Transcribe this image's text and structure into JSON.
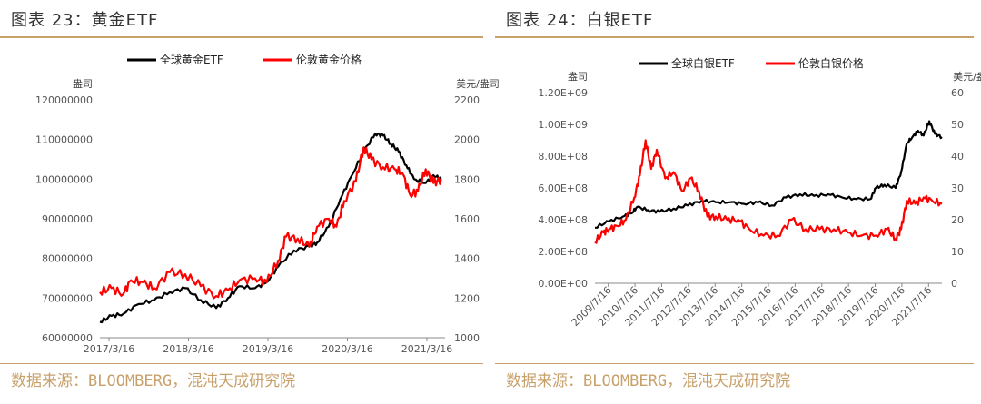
{
  "left": {
    "title": "图表 23：黄金ETF",
    "source": "数据来源：BLOOMBERG，混沌天成研究院",
    "chart_data": {
      "type": "line",
      "left_unit": "盎司",
      "right_unit": "美元/盎司",
      "left_ticks": [
        "60000000",
        "70000000",
        "80000000",
        "90000000",
        "100000000",
        "110000000",
        "120000000"
      ],
      "right_ticks": [
        "1000",
        "1200",
        "1400",
        "1600",
        "1800",
        "2000",
        "2200"
      ],
      "x_ticks": [
        "2017/3/16",
        "2018/3/16",
        "2019/3/16",
        "2020/3/16",
        "2021/3/16"
      ],
      "ylim_left": [
        60000000,
        120000000
      ],
      "ylim_right": [
        1000,
        2200
      ],
      "xlim": [
        2017.2,
        2021.65
      ],
      "legend": "top-center",
      "series": [
        {
          "name": "全球黄金ETF",
          "color": "#000000",
          "axis": "left",
          "x": [
            2017.2,
            2017.35,
            2017.5,
            2017.7,
            2017.9,
            2018.1,
            2018.3,
            2018.5,
            2018.7,
            2018.85,
            2019.0,
            2019.2,
            2019.35,
            2019.5,
            2019.7,
            2019.9,
            2020.0,
            2020.15,
            2020.3,
            2020.45,
            2020.6,
            2020.75,
            2020.85,
            2020.95,
            2021.05,
            2021.15,
            2021.25,
            2021.4,
            2021.5,
            2021.6
          ],
          "y": [
            64000000,
            65500000,
            66000000,
            68500000,
            69500000,
            71500000,
            72500000,
            69500000,
            67500000,
            70000000,
            73000000,
            72500000,
            74000000,
            78000000,
            82000000,
            83000000,
            84000000,
            88000000,
            95000000,
            101000000,
            107000000,
            111500000,
            111000000,
            109000000,
            107000000,
            103500000,
            100000000,
            99000000,
            101000000,
            100000000
          ]
        },
        {
          "name": "伦敦黄金价格",
          "color": "#ff0000",
          "axis": "right",
          "x": [
            2017.2,
            2017.35,
            2017.5,
            2017.6,
            2017.75,
            2017.9,
            2018.1,
            2018.3,
            2018.5,
            2018.7,
            2018.85,
            2019.0,
            2019.2,
            2019.35,
            2019.5,
            2019.6,
            2019.75,
            2019.9,
            2020.0,
            2020.15,
            2020.25,
            2020.35,
            2020.5,
            2020.6,
            2020.7,
            2020.85,
            2021.0,
            2021.1,
            2021.2,
            2021.3,
            2021.4,
            2021.5,
            2021.6
          ],
          "y": [
            1230,
            1250,
            1220,
            1290,
            1280,
            1250,
            1330,
            1320,
            1260,
            1210,
            1240,
            1290,
            1300,
            1280,
            1390,
            1510,
            1500,
            1460,
            1560,
            1600,
            1560,
            1690,
            1790,
            1960,
            1900,
            1860,
            1850,
            1830,
            1720,
            1740,
            1850,
            1780,
            1800
          ]
        }
      ]
    }
  },
  "right": {
    "title": "图表 24：白银ETF",
    "source": "数据来源：BLOOMBERG，混沌天成研究院",
    "chart_data": {
      "type": "line",
      "left_unit": "盎司",
      "right_unit": "美元/盎司",
      "left_ticks": [
        "0.00E+00",
        "2.00E+08",
        "4.00E+08",
        "6.00E+08",
        "8.00E+08",
        "1.00E+09",
        "1.20E+09"
      ],
      "right_ticks": [
        "0",
        "10",
        "20",
        "30",
        "40",
        "50",
        "60"
      ],
      "x_ticks": [
        "2009/7/16",
        "2010/7/16",
        "2011/7/16",
        "2012/7/16",
        "2013/7/16",
        "2014/7/16",
        "2015/7/16",
        "2016/7/16",
        "2017/7/16",
        "2018/7/16",
        "2019/7/16",
        "2020/7/16",
        "2021/7/16"
      ],
      "ylim_left": [
        0,
        1200000000
      ],
      "ylim_right": [
        0,
        60
      ],
      "xlim": [
        2009.5,
        2021.85
      ],
      "legend": "top-center",
      "series": [
        {
          "name": "全球白银ETF",
          "color": "#000000",
          "axis": "left",
          "x": [
            2009.5,
            2010.0,
            2010.5,
            2010.8,
            2011.0,
            2011.4,
            2011.8,
            2012.3,
            2012.8,
            2013.3,
            2013.8,
            2014.3,
            2014.8,
            2015.3,
            2015.8,
            2016.3,
            2016.8,
            2017.3,
            2017.8,
            2018.3,
            2018.8,
            2019.3,
            2019.5,
            2019.8,
            2020.2,
            2020.4,
            2020.6,
            2020.8,
            2021.0,
            2021.2,
            2021.4,
            2021.6,
            2021.85
          ],
          "y": [
            350000000,
            390000000,
            420000000,
            440000000,
            480000000,
            460000000,
            450000000,
            470000000,
            490000000,
            520000000,
            510000000,
            510000000,
            500000000,
            510000000,
            490000000,
            540000000,
            560000000,
            550000000,
            560000000,
            540000000,
            530000000,
            530000000,
            600000000,
            620000000,
            600000000,
            700000000,
            880000000,
            920000000,
            960000000,
            930000000,
            1020000000,
            940000000,
            920000000
          ]
        },
        {
          "name": "伦敦白银价格",
          "color": "#ff0000",
          "axis": "right",
          "x": [
            2009.5,
            2009.8,
            2010.0,
            2010.3,
            2010.6,
            2010.9,
            2011.1,
            2011.3,
            2011.5,
            2011.7,
            2012.0,
            2012.3,
            2012.6,
            2012.9,
            2013.2,
            2013.5,
            2013.8,
            2014.2,
            2014.6,
            2015.0,
            2015.5,
            2016.0,
            2016.5,
            2017.0,
            2017.5,
            2018.0,
            2018.5,
            2019.0,
            2019.5,
            2019.9,
            2020.2,
            2020.4,
            2020.6,
            2020.9,
            2021.2,
            2021.5,
            2021.85
          ],
          "y": [
            13,
            16,
            17,
            18,
            20,
            27,
            34,
            45,
            36,
            42,
            33,
            35,
            29,
            33,
            29,
            21,
            21,
            20,
            20,
            17,
            15,
            15,
            20,
            17,
            17,
            17,
            16,
            15,
            15,
            17,
            14,
            17,
            26,
            25,
            27,
            26,
            25
          ]
        }
      ]
    }
  }
}
